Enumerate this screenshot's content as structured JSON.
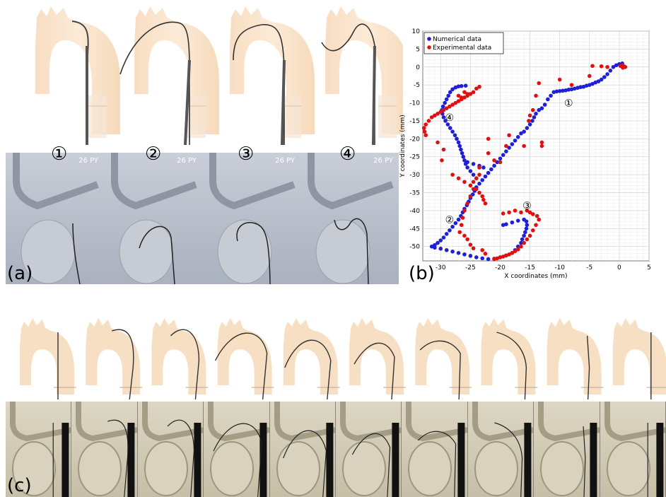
{
  "panels": {
    "a_label": "(a)",
    "b_label": "(b)",
    "c_label": "(c)"
  },
  "panel_a": {
    "steps": [
      "①",
      "②",
      "③",
      "④"
    ],
    "photo_caption": "26 PY"
  },
  "chart_data": {
    "type": "scatter",
    "xlabel": "X coordinates (mm)",
    "ylabel": "Y coordinates (mm)",
    "xlim": [
      -33,
      5
    ],
    "ylim": [
      -54,
      10
    ],
    "xticks": [
      -30,
      -25,
      -20,
      -15,
      -10,
      -5,
      0,
      5
    ],
    "yticks": [
      10,
      5,
      0,
      -5,
      -10,
      -15,
      -20,
      -25,
      -30,
      -35,
      -40,
      -45,
      -50
    ],
    "grid": true,
    "legend_position": "top-left",
    "annotations": [
      {
        "text": "①",
        "x": -8.5,
        "y": -10
      },
      {
        "text": "②",
        "x": -28.5,
        "y": -42.5
      },
      {
        "text": "③",
        "x": -15.5,
        "y": -38.5
      },
      {
        "text": "④",
        "x": -28.5,
        "y": -14
      }
    ],
    "series": [
      {
        "name": "Numerical data",
        "color": "#1f1fd6",
        "points": [
          [
            0.5,
            1
          ],
          [
            0,
            0.8
          ],
          [
            -0.5,
            0.5
          ],
          [
            -1,
            0
          ],
          [
            -1.5,
            -1
          ],
          [
            -2,
            -2
          ],
          [
            -2.5,
            -2.8
          ],
          [
            -3,
            -3.5
          ],
          [
            -3.5,
            -4
          ],
          [
            -4,
            -4.3
          ],
          [
            -4.5,
            -4.7
          ],
          [
            -5,
            -5
          ],
          [
            -5.5,
            -5.2
          ],
          [
            -6,
            -5.5
          ],
          [
            -6.5,
            -5.6
          ],
          [
            -7,
            -5.8
          ],
          [
            -7.5,
            -6
          ],
          [
            -8,
            -6.2
          ],
          [
            -8.5,
            -6.3
          ],
          [
            -9,
            -6.5
          ],
          [
            -9.5,
            -6.6
          ],
          [
            -10,
            -6.7
          ],
          [
            -10.5,
            -6.8
          ],
          [
            -11,
            -7
          ],
          [
            -11.5,
            -8
          ],
          [
            -12,
            -9
          ],
          [
            -12.5,
            -10.5
          ],
          [
            -13,
            -11.5
          ],
          [
            -13.5,
            -12
          ],
          [
            -14,
            -13
          ],
          [
            -14.3,
            -14
          ],
          [
            -14.6,
            -15
          ],
          [
            -15,
            -16
          ],
          [
            -15.5,
            -17
          ],
          [
            -16,
            -18
          ],
          [
            -16.5,
            -18.5
          ],
          [
            -17,
            -19.5
          ],
          [
            -17.5,
            -20.5
          ],
          [
            -18,
            -21.5
          ],
          [
            -18.5,
            -22.5
          ],
          [
            -19,
            -23.5
          ],
          [
            -19.5,
            -24.5
          ],
          [
            -20,
            -25.5
          ],
          [
            -20.5,
            -26.5
          ],
          [
            -21,
            -27.5
          ],
          [
            -21.5,
            -28.5
          ],
          [
            -22,
            -29.5
          ],
          [
            -22.5,
            -30.5
          ],
          [
            -23,
            -31.5
          ],
          [
            -23.5,
            -32.5
          ],
          [
            -24,
            -33.5
          ],
          [
            -24.3,
            -34.5
          ],
          [
            -24.6,
            -35.5
          ],
          [
            -25,
            -36.5
          ],
          [
            -25.3,
            -37.5
          ],
          [
            -25.6,
            -38.5
          ],
          [
            -26,
            -39.5
          ],
          [
            -26.3,
            -40.5
          ],
          [
            -26.6,
            -41.5
          ],
          [
            -27,
            -42.5
          ],
          [
            -27.5,
            -43.5
          ],
          [
            -28,
            -44.5
          ],
          [
            -28.5,
            -45.5
          ],
          [
            -29,
            -46.5
          ],
          [
            -29.5,
            -47.5
          ],
          [
            -30,
            -48.3
          ],
          [
            -30.5,
            -49
          ],
          [
            -31,
            -49.6
          ],
          [
            -31.5,
            -50
          ],
          [
            -31,
            -50.3
          ],
          [
            -30,
            -50.6
          ],
          [
            -29,
            -51
          ],
          [
            -28,
            -51.4
          ],
          [
            -27,
            -51.8
          ],
          [
            -26,
            -52.2
          ],
          [
            -25,
            -52.6
          ],
          [
            -24,
            -53
          ],
          [
            -23,
            -53.3
          ],
          [
            -22,
            -53.5
          ],
          [
            -21,
            -53.4
          ],
          [
            -20,
            -53
          ],
          [
            -19,
            -52.5
          ],
          [
            -18,
            -51.8
          ],
          [
            -17.5,
            -51
          ],
          [
            -17,
            -50
          ],
          [
            -16.5,
            -49
          ],
          [
            -16.3,
            -48
          ],
          [
            -16,
            -47
          ],
          [
            -15.8,
            -46
          ],
          [
            -15.6,
            -45
          ],
          [
            -15.5,
            -44
          ],
          [
            -15.6,
            -43
          ],
          [
            -16,
            -42.5
          ],
          [
            -17,
            -42.8
          ],
          [
            -18,
            -43.3
          ],
          [
            -19,
            -43.8
          ],
          [
            -19.5,
            -44
          ],
          [
            -24,
            -31
          ],
          [
            -24.5,
            -30
          ],
          [
            -25,
            -29
          ],
          [
            -25.5,
            -28
          ],
          [
            -25.8,
            -27
          ],
          [
            -26,
            -26
          ],
          [
            -26.2,
            -25
          ],
          [
            -26.4,
            -24
          ],
          [
            -26.6,
            -23
          ],
          [
            -26.8,
            -22
          ],
          [
            -27,
            -21
          ],
          [
            -27.3,
            -20
          ],
          [
            -27.6,
            -19
          ],
          [
            -28,
            -18
          ],
          [
            -28.4,
            -17
          ],
          [
            -28.8,
            -16
          ],
          [
            -29.2,
            -15
          ],
          [
            -29.5,
            -14
          ],
          [
            -29.7,
            -13
          ],
          [
            -29.8,
            -12
          ],
          [
            -29.6,
            -11
          ],
          [
            -29.3,
            -10
          ],
          [
            -29,
            -9
          ],
          [
            -28.7,
            -8
          ],
          [
            -28.4,
            -7
          ],
          [
            -28,
            -6.2
          ],
          [
            -27.5,
            -5.7
          ],
          [
            -27,
            -5.4
          ],
          [
            -26.5,
            -5.3
          ],
          [
            -25.8,
            -5.2
          ],
          [
            -25.5,
            -26.5
          ],
          [
            -24.5,
            -27
          ],
          [
            -23.5,
            -27.5
          ],
          [
            -22.8,
            -28
          ]
        ]
      },
      {
        "name": "Experimental data",
        "color": "#e01010",
        "points": [
          [
            1,
            0
          ],
          [
            0.8,
            0.2
          ],
          [
            0.5,
            0.5
          ],
          [
            0.2,
            0.3
          ],
          [
            0.6,
            -0.2
          ],
          [
            -2,
            0
          ],
          [
            -3,
            0.2
          ],
          [
            -4.5,
            0.3
          ],
          [
            -5,
            -2.5
          ],
          [
            -8,
            -5
          ],
          [
            -10,
            -3.5
          ],
          [
            -13.5,
            -4.5
          ],
          [
            -14,
            -8
          ],
          [
            -14.5,
            -12
          ],
          [
            -15,
            -13.5
          ],
          [
            -15.2,
            -15
          ],
          [
            -13,
            -21
          ],
          [
            -13,
            -22
          ],
          [
            -16,
            -22
          ],
          [
            -18.5,
            -19
          ],
          [
            -19,
            -22
          ],
          [
            -23.5,
            -5.5
          ],
          [
            -24,
            -6
          ],
          [
            -24.5,
            -7
          ],
          [
            -25,
            -7.5
          ],
          [
            -25.5,
            -8
          ],
          [
            -26,
            -8.5
          ],
          [
            -26.5,
            -9
          ],
          [
            -27,
            -9.5
          ],
          [
            -27.5,
            -10
          ],
          [
            -28,
            -10.5
          ],
          [
            -28.5,
            -11
          ],
          [
            -29,
            -11.5
          ],
          [
            -29.5,
            -12
          ],
          [
            -30,
            -12.5
          ],
          [
            -30.5,
            -13
          ],
          [
            -31,
            -13.5
          ],
          [
            -31.5,
            -14
          ],
          [
            -32,
            -15
          ],
          [
            -32.5,
            -16
          ],
          [
            -32.8,
            -17
          ],
          [
            -32.7,
            -18
          ],
          [
            -32.5,
            -19
          ],
          [
            -30.5,
            -21
          ],
          [
            -29.5,
            -23
          ],
          [
            -29.8,
            -26
          ],
          [
            -28,
            -30
          ],
          [
            -27,
            -31
          ],
          [
            -26,
            -32
          ],
          [
            -25,
            -33
          ],
          [
            -24,
            -34
          ],
          [
            -23.5,
            -35
          ],
          [
            -23,
            -36
          ],
          [
            -22.8,
            -37
          ],
          [
            -22.5,
            -38
          ],
          [
            -26,
            -7
          ],
          [
            -25.5,
            -7.5
          ],
          [
            -27,
            -8
          ],
          [
            -26.5,
            -8.5
          ],
          [
            -23.5,
            -28
          ],
          [
            -23.5,
            -30
          ],
          [
            -24,
            -31
          ],
          [
            -24.5,
            -32
          ],
          [
            -24.5,
            -34
          ],
          [
            -25,
            -36
          ],
          [
            -25.5,
            -38
          ],
          [
            -26,
            -40
          ],
          [
            -26.3,
            -42
          ],
          [
            -26.5,
            -44
          ],
          [
            -26.8,
            -46
          ],
          [
            -26,
            -47
          ],
          [
            -25.5,
            -48
          ],
          [
            -25,
            -49.5
          ],
          [
            -24.5,
            -50.5
          ],
          [
            -23,
            -51
          ],
          [
            -22.5,
            -52
          ],
          [
            -21,
            -53.5
          ],
          [
            -20.5,
            -53.3
          ],
          [
            -20,
            -53
          ],
          [
            -19.5,
            -52.8
          ],
          [
            -19,
            -52.5
          ],
          [
            -18.5,
            -52.2
          ],
          [
            -18,
            -51.8
          ],
          [
            -17.5,
            -51.3
          ],
          [
            -17,
            -50.8
          ],
          [
            -16.5,
            -50
          ],
          [
            -16,
            -49
          ],
          [
            -15.5,
            -48
          ],
          [
            -15,
            -47
          ],
          [
            -14.5,
            -45.5
          ],
          [
            -14,
            -44
          ],
          [
            -13.5,
            -42.5
          ],
          [
            -13.8,
            -41.5
          ],
          [
            -14.5,
            -41
          ],
          [
            -15,
            -40.5
          ],
          [
            -15.5,
            -40
          ],
          [
            -16.5,
            -40.5
          ],
          [
            -17.5,
            -40
          ],
          [
            -18.5,
            -40.5
          ],
          [
            -19.5,
            -40.8
          ],
          [
            -22,
            -20
          ],
          [
            -22,
            -24
          ],
          [
            -21,
            -26
          ],
          [
            -20,
            -26.5
          ]
        ]
      }
    ]
  },
  "panel_c": {
    "frame_count": 10
  }
}
